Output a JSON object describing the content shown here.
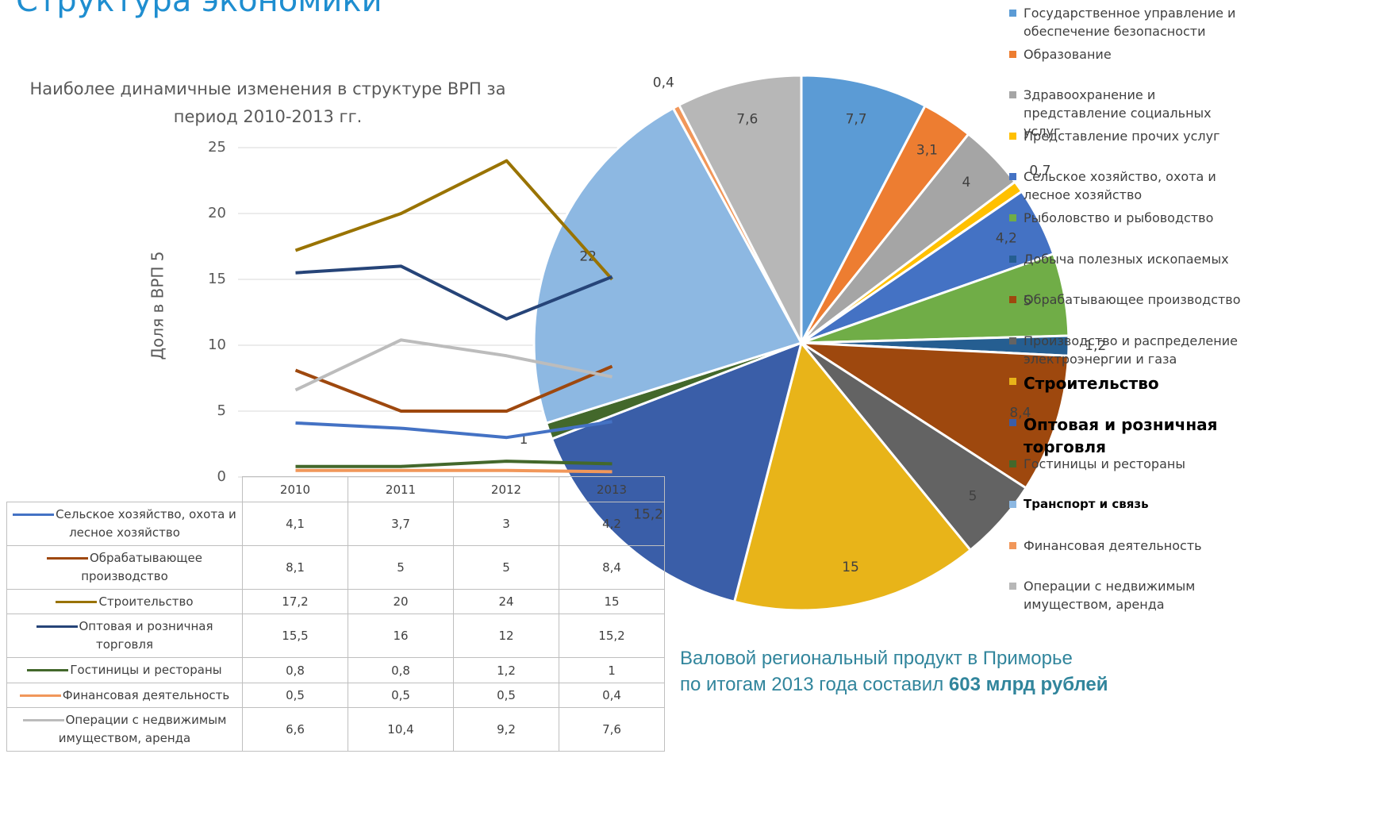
{
  "title": "Структура экономики",
  "chart_data": [
    {
      "type": "line",
      "title": "Наиболее динамичные изменения в структуре ВРП  за период 2010-2013 гг.",
      "y_label": "Доля в ВРП 5",
      "categories": [
        "2010",
        "2011",
        "2012",
        "2013"
      ],
      "ylim": [
        0,
        25
      ],
      "yticks": [
        0,
        5,
        10,
        15,
        20,
        25
      ],
      "grid": true,
      "series": [
        {
          "name": "Сельское хозяйство, охота и лесное хозяйство",
          "color": "#4472c4",
          "values": [
            4.1,
            3.7,
            3,
            4.2
          ],
          "value_labels": [
            "4,1",
            "3,7",
            "3",
            "4,2"
          ]
        },
        {
          "name": "Обрабатывающее производство",
          "color": "#9e480e",
          "values": [
            8.1,
            5,
            5,
            8.4
          ],
          "value_labels": [
            "8,1",
            "5",
            "5",
            "8,4"
          ]
        },
        {
          "name": "Строительство",
          "color": "#997300",
          "values": [
            17.2,
            20,
            24,
            15
          ],
          "value_labels": [
            "17,2",
            "20",
            "24",
            "15"
          ]
        },
        {
          "name": "Оптовая и розничная торговля",
          "color": "#264478",
          "values": [
            15.5,
            16,
            12,
            15.2
          ],
          "value_labels": [
            "15,5",
            "16",
            "12",
            "15,2"
          ]
        },
        {
          "name": "Гостиницы и рестораны",
          "color": "#43682b",
          "values": [
            0.8,
            0.8,
            1.2,
            1
          ],
          "value_labels": [
            "0,8",
            "0,8",
            "1,2",
            "1"
          ]
        },
        {
          "name": "Финансовая деятельность",
          "color": "#f1975a",
          "values": [
            0.5,
            0.5,
            0.5,
            0.4
          ],
          "value_labels": [
            "0,5",
            "0,5",
            "0,5",
            "0,4"
          ]
        },
        {
          "name": "Операции с недвижимым имуществом, аренда",
          "color": "#bcbcbc",
          "values": [
            6.6,
            10.4,
            9.2,
            7.6
          ],
          "value_labels": [
            "6,6",
            "10,4",
            "9,2",
            "7,6"
          ]
        }
      ]
    },
    {
      "type": "pie",
      "categories": [
        "Государственное управление и обеспечение безопасности",
        "Образование",
        "Здравоохранение и представление социальных услуг",
        "Представление прочих услуг",
        "Сельское хозяйство, охота и лесное хозяйство",
        "Рыболовство и рыбоводство",
        "Добыча полезных ископаемых",
        "Обрабатывающее производство",
        "Производство и распределение электроэнергии и газа",
        "Строительство",
        "Оптовая и розничная торговля",
        "Гостиницы и рестораны",
        "Транспорт и связь",
        "Финансовая деятельность",
        "Операции с недвижимым имуществом, аренда"
      ],
      "values": [
        7.7,
        3.1,
        4,
        0.7,
        4.2,
        5,
        1.2,
        8.4,
        5,
        15,
        15.2,
        1,
        22,
        0.4,
        7.6
      ],
      "value_labels": [
        "7,7",
        "3,1",
        "4",
        "0,7",
        "4,2",
        "5",
        "1,2",
        "8,4",
        "5",
        "15",
        "15,2",
        "1",
        "22",
        "0,4",
        "7,6"
      ],
      "colors": [
        "#5b9bd5",
        "#ed7d31",
        "#a5a5a5",
        "#ffc000",
        "#4472c4",
        "#70ad47",
        "#255e91",
        "#9e480e",
        "#636363",
        "#e8b419",
        "#3a5ea8",
        "#43682b",
        "#8db8e2",
        "#f1975a",
        "#b7b7b7"
      ]
    }
  ],
  "summary": {
    "line1": "Валовой региональный продукт в Приморье",
    "line2": "по итогам 2013 года составил",
    "highlight": "603 млрд рублей"
  }
}
